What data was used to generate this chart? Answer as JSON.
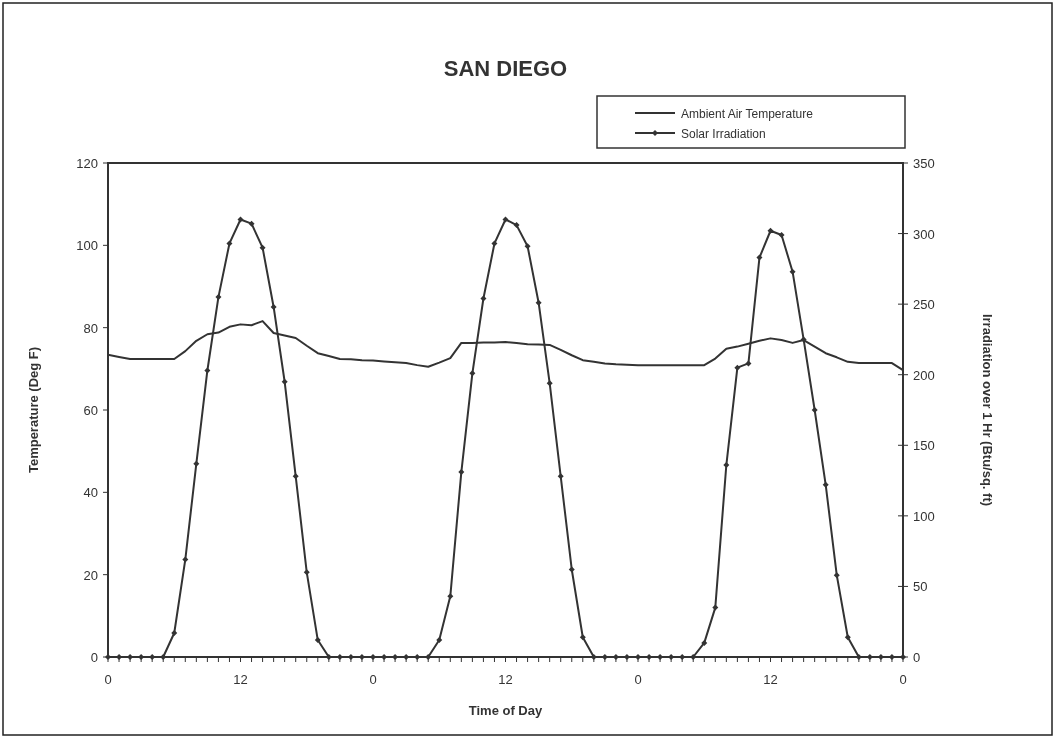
{
  "chart_data": {
    "type": "line",
    "title": "SAN DIEGO",
    "xlabel": "Time of Day",
    "ylabel": "Temperature (Deg F)",
    "y2label": "Irradiation over 1 Hr (Btu/sq. ft)",
    "categories": [
      "0",
      null,
      null,
      null,
      null,
      null,
      null,
      null,
      null,
      null,
      null,
      null,
      "12",
      null,
      null,
      null,
      null,
      null,
      null,
      null,
      null,
      null,
      null,
      null,
      "0",
      null,
      null,
      null,
      null,
      null,
      null,
      null,
      null,
      null,
      null,
      null,
      "12",
      null,
      null,
      null,
      null,
      null,
      null,
      null,
      null,
      null,
      null,
      null,
      "0",
      null,
      null,
      null,
      null,
      null,
      null,
      null,
      null,
      null,
      null,
      null,
      "12",
      null,
      null,
      null,
      null,
      null,
      null,
      null,
      null,
      null,
      null,
      null,
      "0"
    ],
    "ylim": [
      0,
      120
    ],
    "yticks": [
      0,
      20,
      40,
      60,
      80,
      100,
      120
    ],
    "y2lim": [
      0,
      350
    ],
    "y2ticks": [
      0,
      50,
      100,
      150,
      200,
      250,
      300,
      350
    ],
    "legend": "top right",
    "series": [
      {
        "name": "Ambient Air Temperature",
        "color": "#333333",
        "marker": "none",
        "values": [
          73.4,
          72.9,
          72.4,
          72.4,
          72.4,
          72.4,
          72.4,
          74.3,
          76.8,
          78.4,
          78.8,
          80.2,
          80.8,
          80.6,
          81.6,
          78.7,
          78.1,
          77.5,
          75.6,
          73.8,
          73.1,
          72.4,
          72.3,
          72.1,
          72,
          71.8,
          71.6,
          71.4,
          70.9,
          70.5,
          71.5,
          72.6,
          76.3,
          76.3,
          76.4,
          76.4,
          76.5,
          76.3,
          76,
          75.9,
          75.8,
          74.6,
          73.3,
          72.1,
          71.7,
          71.3,
          71.1,
          71,
          70.9,
          70.9,
          70.9,
          70.9,
          70.9,
          70.9,
          70.9,
          72.5,
          74.9,
          75.4,
          76.1,
          76.8,
          77.4,
          77,
          76.3,
          77,
          75.4,
          73.8,
          72.8,
          71.7,
          71.4,
          71.4,
          71.4,
          71.4,
          69.7
        ]
      },
      {
        "name": "Solar Irradiation",
        "color": "#333333",
        "marker": "diamond",
        "axis": "y2",
        "values": [
          0,
          0,
          0,
          0,
          0,
          0,
          17,
          69,
          137,
          203,
          255,
          293,
          310,
          307,
          290,
          248,
          195,
          128,
          60,
          12,
          0,
          0,
          0,
          0,
          0,
          0,
          0,
          0,
          0,
          0,
          12,
          43,
          131,
          201,
          254,
          293,
          310,
          306,
          291,
          251,
          194,
          128,
          62,
          14,
          0,
          0,
          0,
          0,
          0,
          0,
          0,
          0,
          0,
          0,
          10,
          35,
          136,
          205,
          208,
          283,
          302,
          299,
          273,
          225,
          175,
          122,
          58,
          14,
          0,
          0,
          0,
          0,
          0
        ]
      }
    ]
  }
}
